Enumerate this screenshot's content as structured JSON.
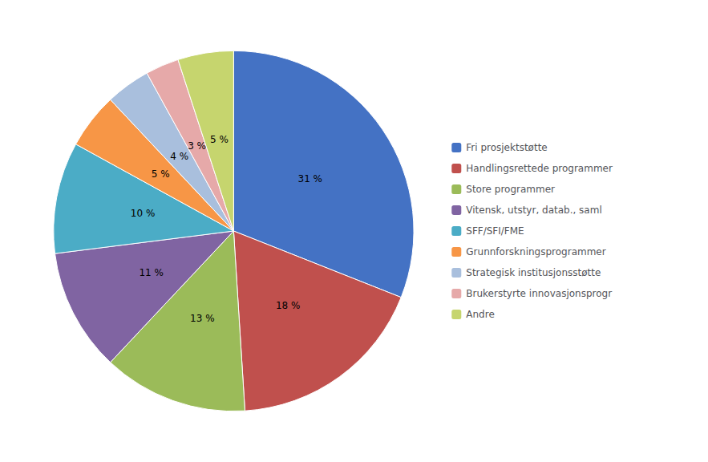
{
  "chart_data": {
    "type": "pie",
    "categories": [
      "Fri prosjektstøtte",
      "Handlingsrettede programmer",
      "Store programmer",
      "Vitensk, utstyr, datab., saml",
      "SFF/SFI/FME",
      "Grunnforskningsprogrammer",
      "Strategisk institusjonsstøtte",
      "Brukerstyrte innovasjonsprogr",
      "Andre"
    ],
    "values": [
      31,
      18,
      13,
      11,
      10,
      5,
      4,
      3,
      5
    ],
    "value_labels": [
      "31 %",
      "18 %",
      "13 %",
      "11 %",
      "10 %",
      "5 %",
      "4 %",
      "3 %",
      "5 %"
    ],
    "colors": [
      "#4472C4",
      "#C0504D",
      "#9BBB59",
      "#8064A2",
      "#4BACC6",
      "#F79646",
      "#A9BFDD",
      "#E6A9A9",
      "#C6D56E"
    ],
    "data_labels": true,
    "legend": "right"
  }
}
